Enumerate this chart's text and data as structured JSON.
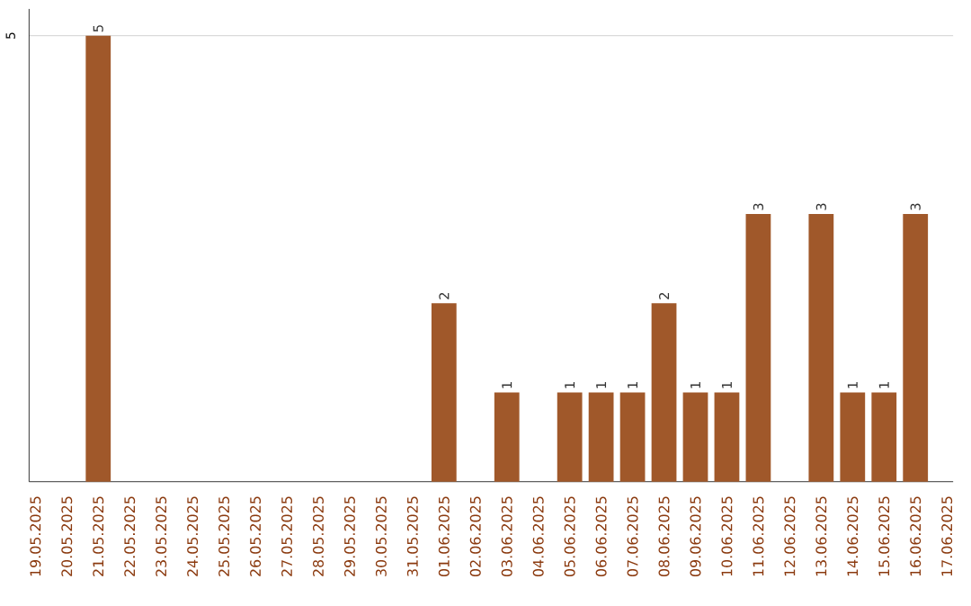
{
  "chart_data": {
    "type": "bar",
    "categories": [
      "19.05.2025",
      "20.05.2025",
      "21.05.2025",
      "22.05.2025",
      "23.05.2025",
      "24.05.2025",
      "25.05.2025",
      "26.05.2025",
      "27.05.2025",
      "28.05.2025",
      "29.05.2025",
      "30.05.2025",
      "31.05.2025",
      "01.06.2025",
      "02.06.2025",
      "03.06.2025",
      "04.06.2025",
      "05.06.2025",
      "06.06.2025",
      "07.06.2025",
      "08.06.2025",
      "09.06.2025",
      "10.06.2025",
      "11.06.2025",
      "12.06.2025",
      "13.06.2025",
      "14.06.2025",
      "15.06.2025",
      "16.06.2025",
      "17.06.2025"
    ],
    "values": [
      null,
      null,
      5,
      null,
      null,
      null,
      null,
      null,
      null,
      null,
      null,
      null,
      null,
      2,
      null,
      1,
      null,
      1,
      1,
      1,
      2,
      1,
      1,
      3,
      null,
      3,
      1,
      1,
      3,
      null
    ],
    "color": "#a0582a",
    "ylim": [
      0,
      5.3
    ],
    "yticks": [
      5
    ],
    "grid": "y",
    "data_labels": true
  }
}
